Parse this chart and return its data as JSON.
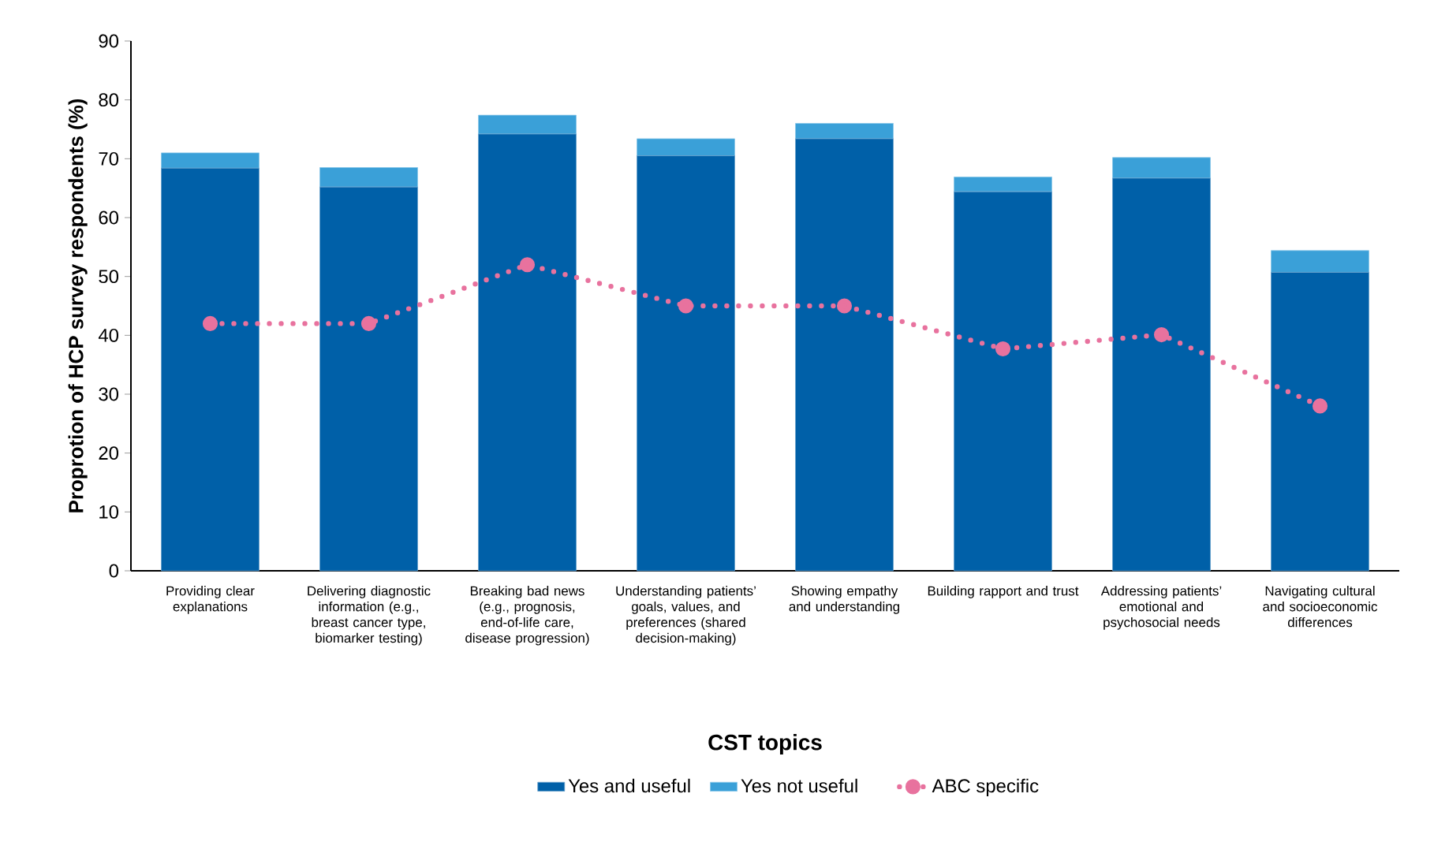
{
  "chart_data": {
    "type": "bar",
    "stacked": true,
    "xlabel": "CST topics",
    "ylabel": "Proprotion of HCP survey respondents (%)",
    "categories": [
      "Providing clear explanations",
      "Delivering diagnostic information (e.g., breast cancer type, biomarker testing)",
      "Breaking bad news (e.g., prognosis, end-of-life care, disease progression)",
      "Understanding patients’ goals, values, and preferences (shared decision-making)",
      "Showing empathy and understanding",
      "Building rapport and trust",
      "Addressing patients’ emotional and psychosocial needs",
      "Navigating cultural and socioeconomic differences"
    ],
    "series": [
      {
        "name": "Yes and useful",
        "color": "#0060a8",
        "values": [
          68.4,
          65.2,
          74.2,
          70.5,
          73.4,
          64.4,
          66.7,
          50.7
        ]
      },
      {
        "name": "Yes not useful",
        "color": "#3aa0d8",
        "values": [
          2.6,
          3.3,
          3.2,
          2.9,
          2.6,
          2.5,
          3.5,
          3.7
        ]
      },
      {
        "name": "ABC specific",
        "type": "line",
        "color": "#e8729e",
        "marker": "circle",
        "line_style": "dotted",
        "values": [
          42,
          42,
          52,
          45,
          45,
          37.7,
          40.1,
          28.0
        ]
      }
    ],
    "ylim": [
      0,
      90
    ],
    "yticks": [
      0,
      10,
      20,
      30,
      40,
      50,
      60,
      70,
      80,
      90
    ],
    "grid": false,
    "legend": "bottom"
  }
}
